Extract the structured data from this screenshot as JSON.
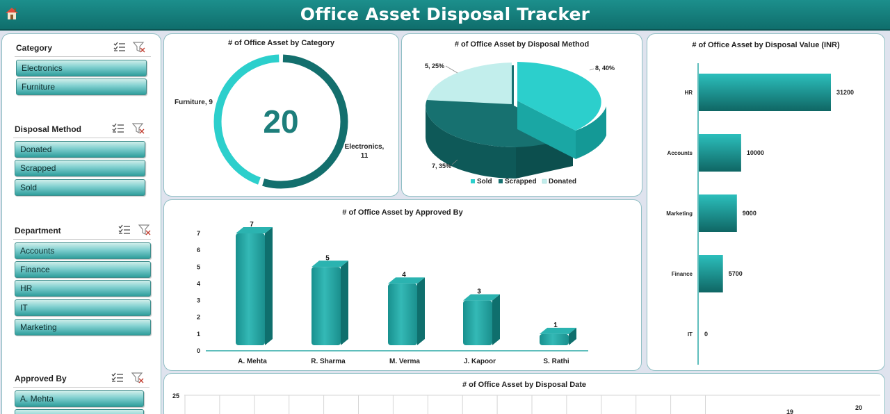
{
  "header": {
    "title": "Office Asset Disposal Tracker",
    "home_icon": "home-icon"
  },
  "slicers": [
    {
      "title": "Category",
      "items": [
        "Electronics",
        "Furniture"
      ]
    },
    {
      "title": "Disposal Method",
      "items": [
        "Donated",
        "Scrapped",
        "Sold"
      ]
    },
    {
      "title": "Department",
      "items": [
        "Accounts",
        "Finance",
        "HR",
        "IT",
        "Marketing"
      ]
    },
    {
      "title": "Approved By",
      "items": [
        "A. Mehta",
        ""
      ]
    }
  ],
  "colors": {
    "teal_dark": "#136f6d",
    "teal_mid": "#2aa8a6",
    "teal_light": "#2ccfcc",
    "teal_pale": "#c2eeec"
  },
  "chart_data": [
    {
      "type": "pie",
      "title": "# of Office Asset  by Category",
      "center_value": "20",
      "categories": [
        "Electronics",
        "Furniture"
      ],
      "values": [
        11,
        9
      ],
      "labels": [
        "Electronics, 11",
        "Furniture, 9"
      ]
    },
    {
      "type": "pie",
      "title": "# of Office Asset  by Disposal Method",
      "categories": [
        "Sold",
        "Scrapped",
        "Donated"
      ],
      "values": [
        8,
        7,
        5
      ],
      "labels": [
        "8, 40%",
        "7, 35%",
        "5, 25%"
      ],
      "legend": "bottom"
    },
    {
      "type": "bar",
      "title": "# of Office Asset  by Approved By",
      "categories": [
        "A. Mehta",
        "R. Sharma",
        "M. Verma",
        "J. Kapoor",
        "S. Rathi"
      ],
      "values": [
        7,
        5,
        4,
        3,
        1
      ],
      "ylim": [
        0,
        7
      ],
      "yticks": [
        "0",
        "1",
        "2",
        "3",
        "4",
        "5",
        "6",
        "7"
      ]
    },
    {
      "type": "bar",
      "orientation": "horizontal",
      "title": "# of Office Asset  by Disposal Value (INR)",
      "categories": [
        "HR",
        "Accounts",
        "Marketing",
        "Finance",
        "IT"
      ],
      "values": [
        31200,
        10000,
        9000,
        5700,
        0
      ],
      "value_labels": [
        "31200",
        "10000",
        "9000",
        "5700",
        "0"
      ]
    },
    {
      "type": "line",
      "title": "# of Office Asset  by Disposal Date",
      "ymax_label": "25",
      "visible_labels": [
        "19",
        "20"
      ]
    }
  ]
}
